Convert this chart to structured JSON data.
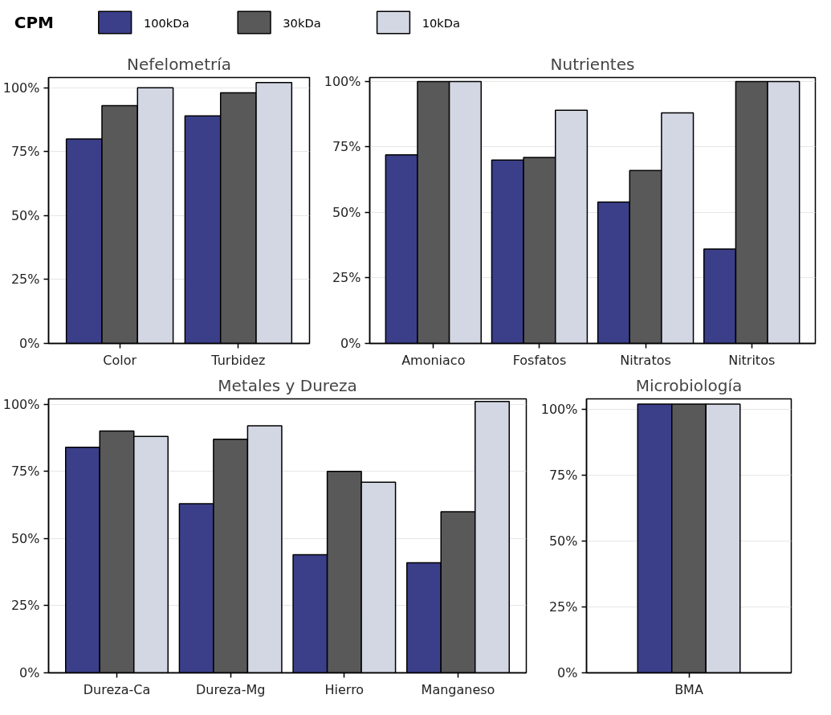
{
  "chart_data": [
    {
      "type": "bar",
      "title": "Nefelometría",
      "legend_title": "CPM",
      "legend": "top",
      "categories": [
        "Color",
        "Turbidez"
      ],
      "series": [
        {
          "name": "100kDa",
          "color": "#3b3f89",
          "values": [
            80,
            89
          ]
        },
        {
          "name": "30kDa",
          "color": "#595959",
          "values": [
            93,
            98
          ]
        },
        {
          "name": "10kDa",
          "color": "#d3d7e3",
          "values": [
            100,
            102
          ]
        }
      ],
      "ylim": [
        0,
        104
      ],
      "yticks": [
        {
          "value": 0,
          "label": "0%"
        },
        {
          "value": 25,
          "label": "25%"
        },
        {
          "value": 50,
          "label": "50%"
        },
        {
          "value": 75,
          "label": "75%"
        },
        {
          "value": 100,
          "label": "100%"
        }
      ],
      "grid": "y"
    },
    {
      "type": "bar",
      "title": "Nutrientes",
      "categories": [
        "Amoniaco",
        "Fosfatos",
        "Nitratos",
        "Nitritos"
      ],
      "series": [
        {
          "color": "#3b3f89",
          "values": [
            72,
            70,
            54,
            36
          ]
        },
        {
          "color": "#595959",
          "values": [
            100,
            71,
            66,
            100
          ]
        },
        {
          "color": "#d3d7e3",
          "values": [
            100,
            89,
            88,
            100
          ]
        }
      ],
      "ylim": [
        0,
        101.5
      ],
      "yticks": [
        {
          "value": 0,
          "label": "0%"
        },
        {
          "value": 25,
          "label": "25%"
        },
        {
          "value": 50,
          "label": "50%"
        },
        {
          "value": 75,
          "label": "75%"
        },
        {
          "value": 100,
          "label": "100%"
        }
      ],
      "grid": "y"
    },
    {
      "type": "bar",
      "title": "Metales y Dureza",
      "categories": [
        "Dureza-Ca",
        "Dureza-Mg",
        "Hierro",
        "Manganeso"
      ],
      "series": [
        {
          "color": "#3b3f89",
          "values": [
            84,
            63,
            44,
            41
          ]
        },
        {
          "color": "#595959",
          "values": [
            90,
            87,
            75,
            60
          ]
        },
        {
          "color": "#d3d7e3",
          "values": [
            88,
            92,
            71,
            101
          ]
        }
      ],
      "ylim": [
        0,
        102
      ],
      "yticks": [
        {
          "value": 0,
          "label": "0%"
        },
        {
          "value": 25,
          "label": "25%"
        },
        {
          "value": 50,
          "label": "50%"
        },
        {
          "value": 75,
          "label": "75%"
        },
        {
          "value": 100,
          "label": "100%"
        }
      ],
      "grid": "y"
    },
    {
      "type": "bar",
      "title": "Microbiología",
      "categories": [
        "BMA"
      ],
      "series": [
        {
          "color": "#3b3f89",
          "values": [
            102
          ]
        },
        {
          "color": "#595959",
          "values": [
            102
          ]
        },
        {
          "color": "#d3d7e3",
          "values": [
            102
          ]
        }
      ],
      "ylim": [
        0,
        104
      ],
      "yticks": [
        {
          "value": 0,
          "label": "0%"
        },
        {
          "value": 25,
          "label": "25%"
        },
        {
          "value": 50,
          "label": "50%"
        },
        {
          "value": 75,
          "label": "75%"
        },
        {
          "value": 100,
          "label": "100%"
        }
      ],
      "grid": "y"
    }
  ]
}
